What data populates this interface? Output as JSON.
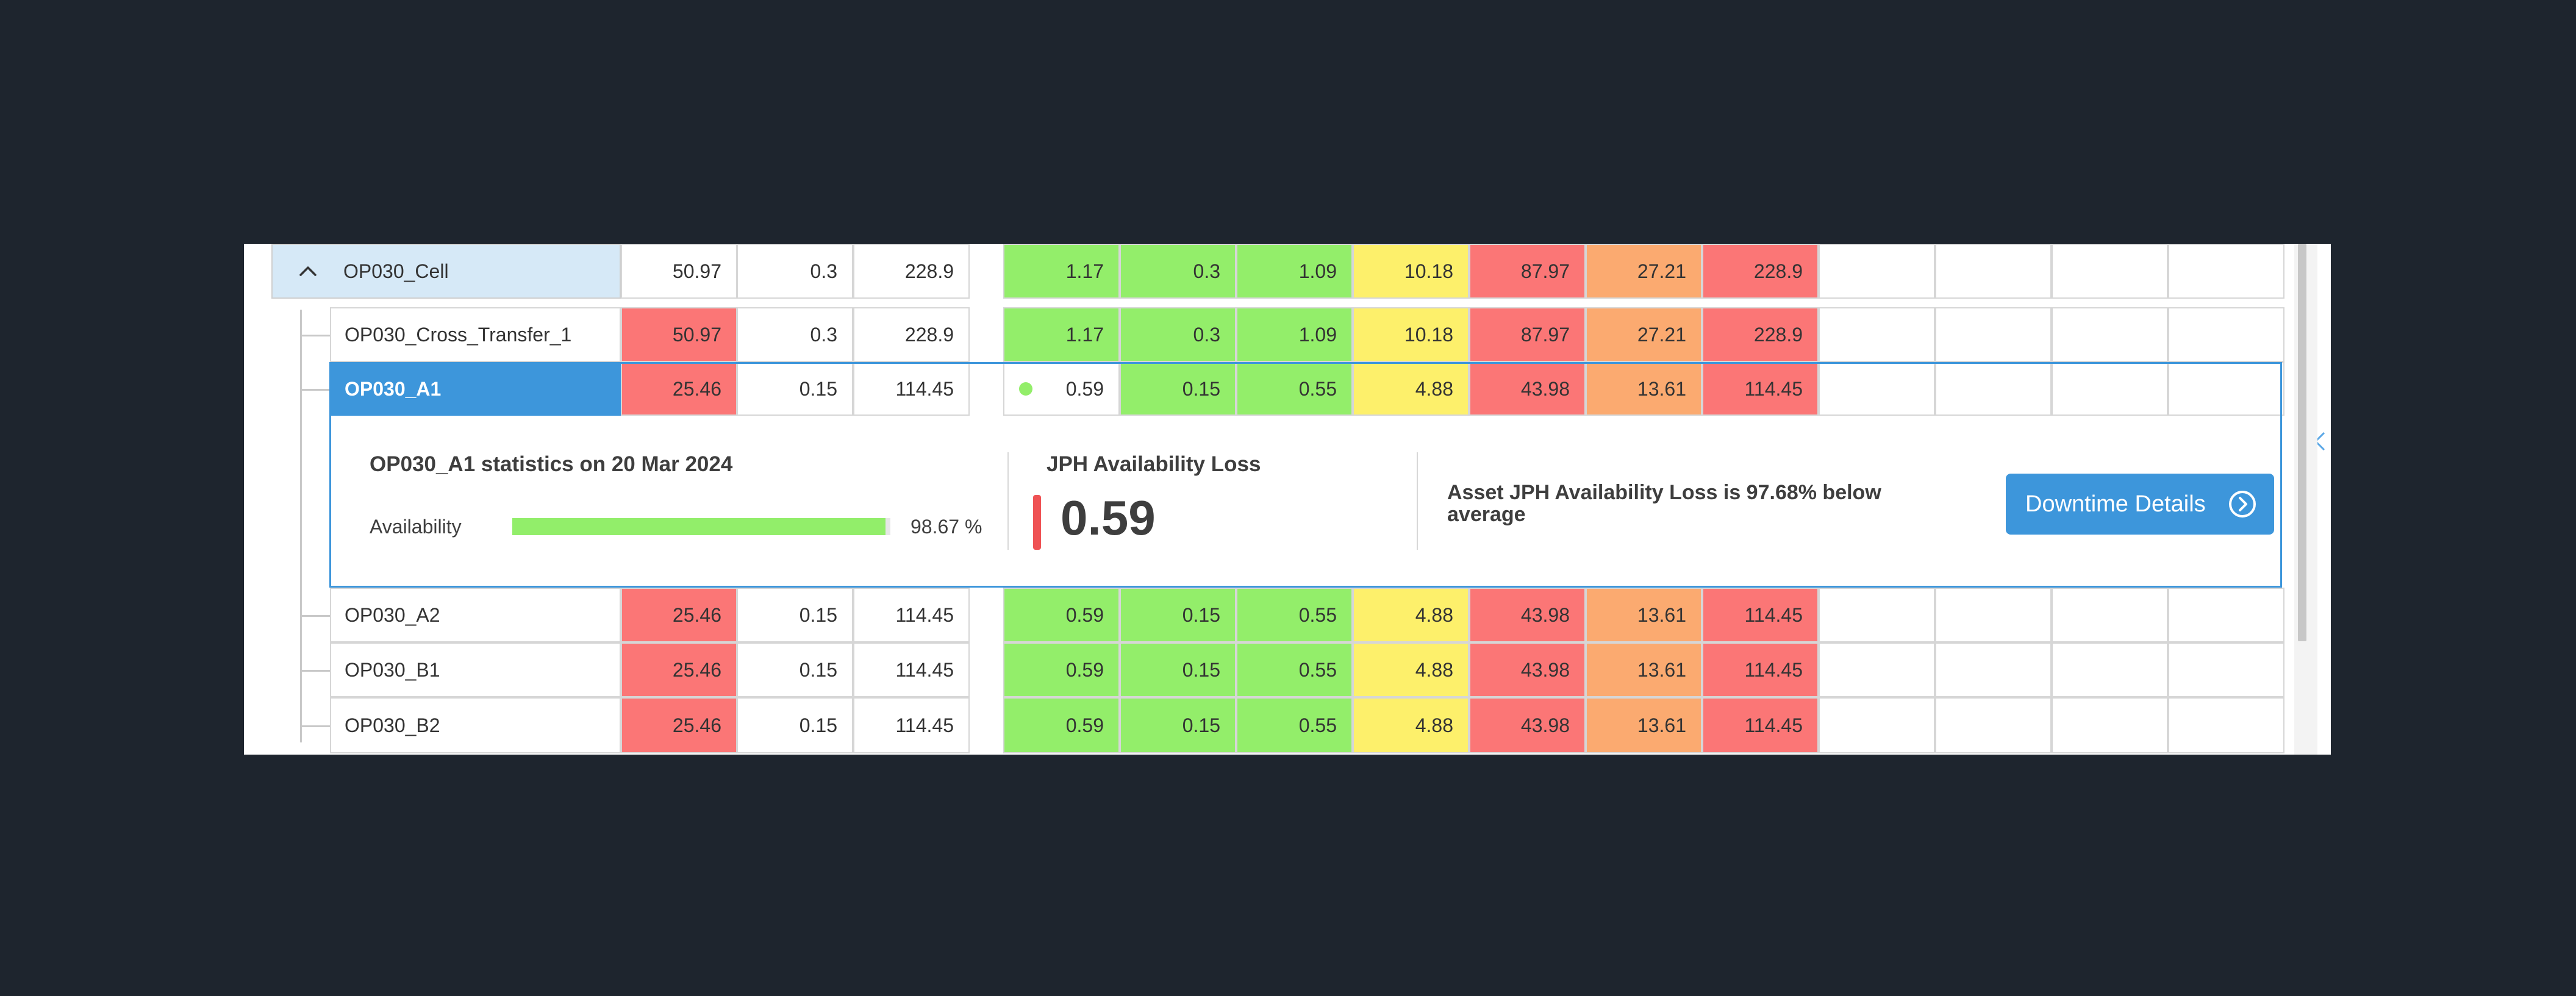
{
  "colors": {
    "green": "#93ee6a",
    "yellow": "#fdf06b",
    "red": "#fb7676",
    "orange": "#fbaa70",
    "white": "#ffffff",
    "selected": "#3d96db"
  },
  "rows": [
    {
      "name": "OP030_Cell",
      "type": "cell",
      "icon": "chevron-up-icon",
      "left": [
        {
          "value": "50.97",
          "color": "white"
        },
        {
          "value": "0.3",
          "color": "white"
        },
        {
          "value": "228.9",
          "color": "white"
        }
      ],
      "right": [
        {
          "value": "1.17",
          "color": "green"
        },
        {
          "value": "0.3",
          "color": "green"
        },
        {
          "value": "1.09",
          "color": "green"
        },
        {
          "value": "10.18",
          "color": "yellow"
        },
        {
          "value": "87.97",
          "color": "red"
        },
        {
          "value": "27.21",
          "color": "orange"
        },
        {
          "value": "228.9",
          "color": "red"
        }
      ]
    },
    {
      "name": "OP030_Cross_Transfer_1",
      "type": "asset",
      "left": [
        {
          "value": "50.97",
          "color": "red"
        },
        {
          "value": "0.3",
          "color": "white"
        },
        {
          "value": "228.9",
          "color": "white"
        }
      ],
      "right": [
        {
          "value": "1.17",
          "color": "green"
        },
        {
          "value": "0.3",
          "color": "green"
        },
        {
          "value": "1.09",
          "color": "green"
        },
        {
          "value": "10.18",
          "color": "yellow"
        },
        {
          "value": "87.97",
          "color": "red"
        },
        {
          "value": "27.21",
          "color": "orange"
        },
        {
          "value": "228.9",
          "color": "red"
        }
      ]
    },
    {
      "name": "OP030_A1",
      "type": "asset",
      "selected": true,
      "left": [
        {
          "value": "25.46",
          "color": "red"
        },
        {
          "value": "0.15",
          "color": "white"
        },
        {
          "value": "114.45",
          "color": "white"
        }
      ],
      "right": [
        {
          "value": "0.59",
          "color": "white",
          "dot": "green"
        },
        {
          "value": "0.15",
          "color": "green"
        },
        {
          "value": "0.55",
          "color": "green"
        },
        {
          "value": "4.88",
          "color": "yellow"
        },
        {
          "value": "43.98",
          "color": "red"
        },
        {
          "value": "13.61",
          "color": "orange"
        },
        {
          "value": "114.45",
          "color": "red"
        }
      ]
    },
    {
      "name": "OP030_A2",
      "type": "asset",
      "left": [
        {
          "value": "25.46",
          "color": "red"
        },
        {
          "value": "0.15",
          "color": "white"
        },
        {
          "value": "114.45",
          "color": "white"
        }
      ],
      "right": [
        {
          "value": "0.59",
          "color": "green"
        },
        {
          "value": "0.15",
          "color": "green"
        },
        {
          "value": "0.55",
          "color": "green"
        },
        {
          "value": "4.88",
          "color": "yellow"
        },
        {
          "value": "43.98",
          "color": "red"
        },
        {
          "value": "13.61",
          "color": "orange"
        },
        {
          "value": "114.45",
          "color": "red"
        }
      ]
    },
    {
      "name": "OP030_B1",
      "type": "asset",
      "left": [
        {
          "value": "25.46",
          "color": "red"
        },
        {
          "value": "0.15",
          "color": "white"
        },
        {
          "value": "114.45",
          "color": "white"
        }
      ],
      "right": [
        {
          "value": "0.59",
          "color": "green"
        },
        {
          "value": "0.15",
          "color": "green"
        },
        {
          "value": "0.55",
          "color": "green"
        },
        {
          "value": "4.88",
          "color": "yellow"
        },
        {
          "value": "43.98",
          "color": "red"
        },
        {
          "value": "13.61",
          "color": "orange"
        },
        {
          "value": "114.45",
          "color": "red"
        }
      ]
    },
    {
      "name": "OP030_B2",
      "type": "asset",
      "left": [
        {
          "value": "25.46",
          "color": "red"
        },
        {
          "value": "0.15",
          "color": "white"
        },
        {
          "value": "114.45",
          "color": "white"
        }
      ],
      "right": [
        {
          "value": "0.59",
          "color": "green"
        },
        {
          "value": "0.15",
          "color": "green"
        },
        {
          "value": "0.55",
          "color": "green"
        },
        {
          "value": "4.88",
          "color": "yellow"
        },
        {
          "value": "43.98",
          "color": "red"
        },
        {
          "value": "13.61",
          "color": "orange"
        },
        {
          "value": "114.45",
          "color": "red"
        }
      ]
    }
  ],
  "stats": {
    "title": "OP030_A1 statistics on 20 Mar 2024",
    "availability_label": "Availability",
    "availability_percent": 98.67,
    "availability_text": "98.67 %",
    "loss_title": "JPH Availability Loss",
    "loss_value": "0.59",
    "loss_indicator": "red-bar",
    "comparison_text": "Asset JPH Availability Loss is 97.68% below average",
    "button_label": "Downtime Details",
    "button_icon": "chevron-right-circle-icon",
    "close_icon": "close-icon"
  }
}
